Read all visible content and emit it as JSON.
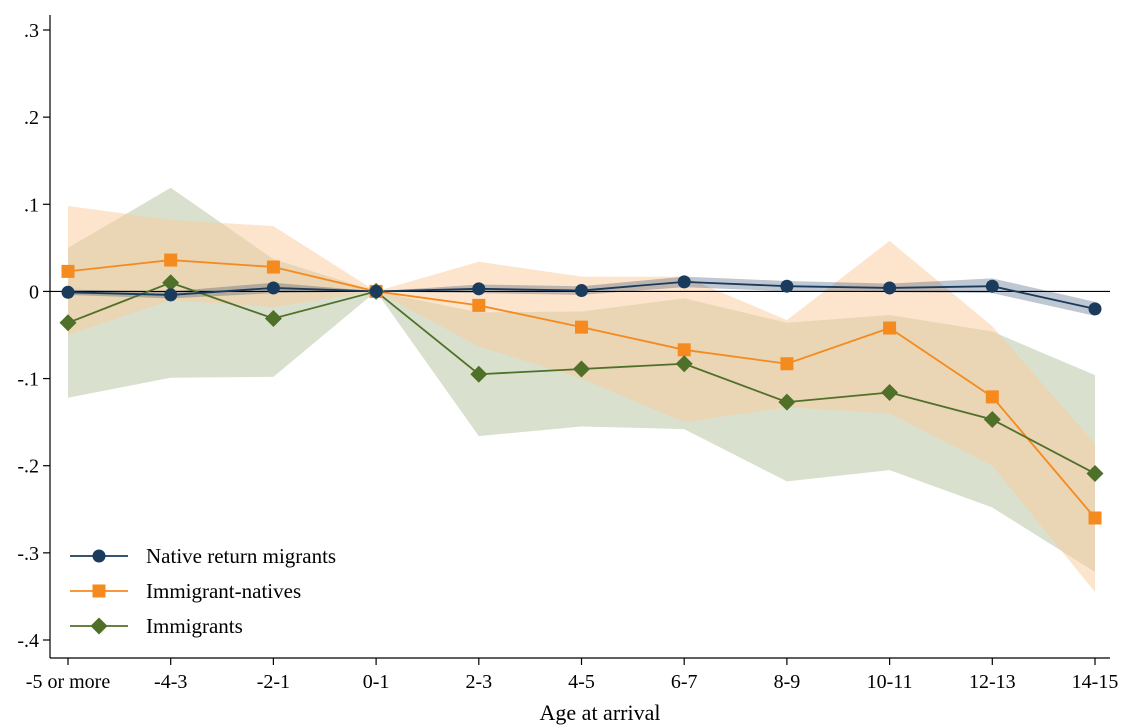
{
  "chart_data": {
    "type": "line",
    "xlabel": "Age at arrival",
    "ylabel": "",
    "categories": [
      "-5 or more",
      "-4-3",
      "-2-1",
      "0-1",
      "2-3",
      "4-5",
      "6-7",
      "8-9",
      "10-11",
      "12-13",
      "14-15"
    ],
    "ylim": [
      -0.4,
      0.3
    ],
    "yticks": [
      -0.4,
      -0.3,
      -0.2,
      -0.1,
      0,
      0.1,
      0.2,
      0.3
    ],
    "ytick_labels": [
      "-.4",
      "-.3",
      "-.2",
      "-.1",
      "0",
      ".1",
      ".2",
      ".3"
    ],
    "zero_line": true,
    "grid": false,
    "legend_position": "bottom-left",
    "series": [
      {
        "name": "Native return migrants",
        "marker": "circle",
        "color": "#1a3b5c",
        "band_color": "#1a3b5c",
        "values": [
          -0.001,
          -0.004,
          0.004,
          0.0,
          0.003,
          0.001,
          0.011,
          0.006,
          0.004,
          0.006,
          -0.02
        ],
        "ci_lower": [
          -0.004,
          -0.008,
          -0.002,
          0.0,
          -0.002,
          -0.004,
          0.005,
          0.0,
          -0.001,
          -0.002,
          -0.028
        ],
        "ci_upper": [
          0.002,
          0.0,
          0.01,
          0.0,
          0.008,
          0.006,
          0.017,
          0.012,
          0.009,
          0.015,
          -0.012
        ]
      },
      {
        "name": "Immigrant-natives",
        "marker": "square",
        "color": "#f58a1f",
        "band_color": "#fcc99c",
        "values": [
          0.023,
          0.036,
          0.028,
          0.0,
          -0.016,
          -0.041,
          -0.067,
          -0.083,
          -0.042,
          -0.121,
          -0.26
        ],
        "ci_lower": [
          -0.05,
          -0.01,
          -0.018,
          0.0,
          -0.063,
          -0.1,
          -0.15,
          -0.133,
          -0.14,
          -0.2,
          -0.345
        ],
        "ci_upper": [
          0.098,
          0.082,
          0.075,
          0.0,
          0.034,
          0.017,
          0.017,
          -0.033,
          0.058,
          -0.04,
          -0.175
        ]
      },
      {
        "name": "Immigrants",
        "marker": "diamond",
        "color": "#4f7028",
        "band_color": "#b9c9a6",
        "values": [
          -0.036,
          0.01,
          -0.031,
          0.0,
          -0.095,
          -0.089,
          -0.083,
          -0.127,
          -0.116,
          -0.147,
          -0.209
        ],
        "ci_lower": [
          -0.122,
          -0.099,
          -0.098,
          0.0,
          -0.166,
          -0.155,
          -0.158,
          -0.218,
          -0.205,
          -0.248,
          -0.322
        ],
        "ci_upper": [
          0.05,
          0.119,
          0.037,
          0.0,
          -0.024,
          -0.023,
          -0.008,
          -0.036,
          -0.027,
          -0.046,
          -0.096
        ]
      }
    ]
  }
}
